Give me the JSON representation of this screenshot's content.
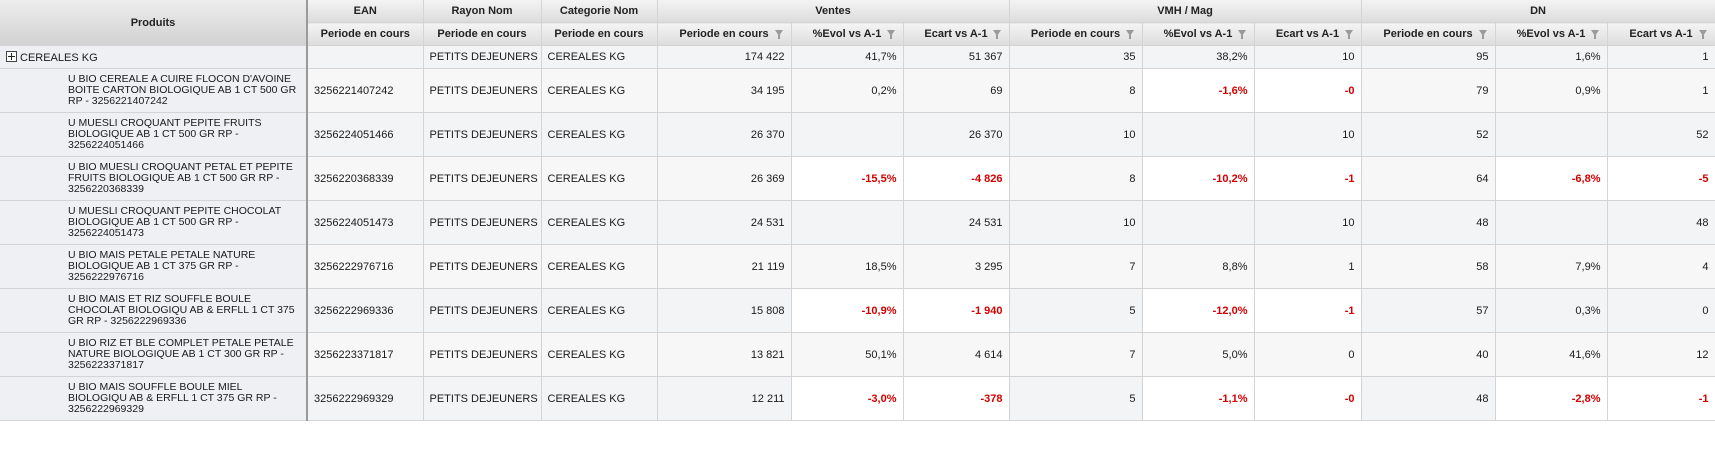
{
  "colors": {
    "header_bg": "#dcdcdc",
    "row_bg": "#f3f4f6",
    "negative": "#d40000",
    "grid_line": "#d4d4d4"
  },
  "header": {
    "produits": "Produits",
    "groups": [
      "EAN",
      "Rayon Nom",
      "Categorie Nom",
      "Ventes",
      "VMH / Mag",
      "DN"
    ],
    "sub": {
      "periode": "Periode en cours",
      "evol": "%Evol vs A-1",
      "ecart": "Ecart vs A-1"
    }
  },
  "total": {
    "label": "CEREALES KG",
    "ean": "",
    "rayon": "PETITS DEJEUNERS",
    "categorie": "CEREALES KG",
    "ventes_periode": "174 422",
    "ventes_evol": "41,7%",
    "ventes_ecart": "51 367",
    "vmh_periode": "35",
    "vmh_evol": "38,2%",
    "vmh_ecart": "10",
    "dn_periode": "95",
    "dn_evol": "1,6%",
    "dn_ecart": "1"
  },
  "rows": [
    {
      "produit": "U BIO CEREALE A CUIRE FLOCON D'AVOINE BOITE CARTON BIOLOGIQUE AB 1 CT 500 GR RP - 3256221407242",
      "ean": "3256221407242",
      "rayon": "PETITS DEJEUNERS",
      "categorie": "CEREALES KG",
      "ventes_periode": "34 195",
      "ventes_evol": "0,2%",
      "ventes_ecart": "69",
      "vmh_periode": "8",
      "vmh_evol": "-1,6%",
      "vmh_ecart": "-0",
      "dn_periode": "79",
      "dn_evol": "0,9%",
      "dn_ecart": "1"
    },
    {
      "produit": "U MUESLI CROQUANT PEPITE FRUITS BIOLOGIQUE AB 1 CT 500 GR RP - 3256224051466",
      "ean": "3256224051466",
      "rayon": "PETITS DEJEUNERS",
      "categorie": "CEREALES KG",
      "ventes_periode": "26 370",
      "ventes_evol": "",
      "ventes_ecart": "26 370",
      "vmh_periode": "10",
      "vmh_evol": "",
      "vmh_ecart": "10",
      "dn_periode": "52",
      "dn_evol": "",
      "dn_ecart": "52"
    },
    {
      "produit": "U BIO MUESLI CROQUANT PETAL ET PEPITE FRUITS BIOLOGIQUE AB 1 CT 500 GR RP - 3256220368339",
      "ean": "3256220368339",
      "rayon": "PETITS DEJEUNERS",
      "categorie": "CEREALES KG",
      "ventes_periode": "26 369",
      "ventes_evol": "-15,5%",
      "ventes_ecart": "-4 826",
      "vmh_periode": "8",
      "vmh_evol": "-10,2%",
      "vmh_ecart": "-1",
      "dn_periode": "64",
      "dn_evol": "-6,8%",
      "dn_ecart": "-5"
    },
    {
      "produit": "U MUESLI CROQUANT PEPITE CHOCOLAT BIOLOGIQUE AB 1 CT 500 GR RP - 3256224051473",
      "ean": "3256224051473",
      "rayon": "PETITS DEJEUNERS",
      "categorie": "CEREALES KG",
      "ventes_periode": "24 531",
      "ventes_evol": "",
      "ventes_ecart": "24 531",
      "vmh_periode": "10",
      "vmh_evol": "",
      "vmh_ecart": "10",
      "dn_periode": "48",
      "dn_evol": "",
      "dn_ecart": "48"
    },
    {
      "produit": "U BIO MAIS PETALE PETALE NATURE BIOLOGIQUE AB 1 CT 375 GR RP - 3256222976716",
      "ean": "3256222976716",
      "rayon": "PETITS DEJEUNERS",
      "categorie": "CEREALES KG",
      "ventes_periode": "21 119",
      "ventes_evol": "18,5%",
      "ventes_ecart": "3 295",
      "vmh_periode": "7",
      "vmh_evol": "8,8%",
      "vmh_ecart": "1",
      "dn_periode": "58",
      "dn_evol": "7,9%",
      "dn_ecart": "4"
    },
    {
      "produit": "U BIO MAIS ET RIZ SOUFFLE BOULE CHOCOLAT BIOLOGIQU AB & ERFLL 1 CT 375 GR RP - 3256222969336",
      "ean": "3256222969336",
      "rayon": "PETITS DEJEUNERS",
      "categorie": "CEREALES KG",
      "ventes_periode": "15 808",
      "ventes_evol": "-10,9%",
      "ventes_ecart": "-1 940",
      "vmh_periode": "5",
      "vmh_evol": "-12,0%",
      "vmh_ecart": "-1",
      "dn_periode": "57",
      "dn_evol": "0,3%",
      "dn_ecart": "0"
    },
    {
      "produit": "U BIO RIZ ET BLE COMPLET PETALE PETALE NATURE BIOLOGIQUE AB 1 CT 300 GR RP - 3256223371817",
      "ean": "3256223371817",
      "rayon": "PETITS DEJEUNERS",
      "categorie": "CEREALES KG",
      "ventes_periode": "13 821",
      "ventes_evol": "50,1%",
      "ventes_ecart": "4 614",
      "vmh_periode": "7",
      "vmh_evol": "5,0%",
      "vmh_ecart": "0",
      "dn_periode": "40",
      "dn_evol": "41,6%",
      "dn_ecart": "12"
    },
    {
      "produit": "U BIO MAIS SOUFFLE BOULE MIEL BIOLOGIQU AB & ERFLL 1 CT 375 GR RP - 3256222969329",
      "ean": "3256222969329",
      "rayon": "PETITS DEJEUNERS",
      "categorie": "CEREALES KG",
      "ventes_periode": "12 211",
      "ventes_evol": "-3,0%",
      "ventes_ecart": "-378",
      "vmh_periode": "5",
      "vmh_evol": "-1,1%",
      "vmh_ecart": "-0",
      "dn_periode": "48",
      "dn_evol": "-2,8%",
      "dn_ecart": "-1"
    }
  ]
}
